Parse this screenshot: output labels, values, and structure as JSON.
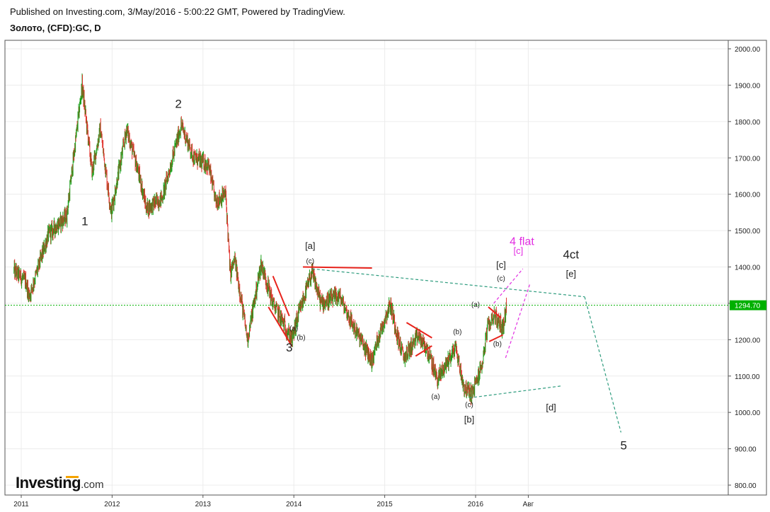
{
  "header": {
    "published": "Published on Investing.com, 3/May/2016 - 5:00:22 GMT, Powered by TradingView.",
    "symbol": "Золото, (CFD):GC, D"
  },
  "logo": {
    "main": "Investing",
    "suffix": ".com",
    "accent_color": "#f5a300"
  },
  "chart_data": {
    "type": "candlestick",
    "title": "Золото, (CFD):GC, D",
    "ylim": [
      800,
      2000
    ],
    "yticks": [
      "2000.00",
      "1900.00",
      "1800.00",
      "1700.00",
      "1600.00",
      "1500.00",
      "1400.00",
      "1300.00",
      "1200.00",
      "1100.00",
      "1000.00",
      "900.00",
      "800.00"
    ],
    "xticks": [
      "2011",
      "2012",
      "2013",
      "2014",
      "2015",
      "2016",
      "Авг"
    ],
    "xticks_year": [
      2011.0,
      2012.0,
      2013.0,
      2014.0,
      2015.0,
      2016.0,
      2016.58
    ],
    "xlim_year": [
      2010.9,
      2018.25
    ],
    "last_price": "1294.70",
    "price_line_color": "#00b000",
    "up_color": "#1aa01a",
    "down_color": "#e0302a",
    "grid": true,
    "approx_path": [
      {
        "t": 2010.92,
        "p": 1390
      },
      {
        "t": 2011.05,
        "p": 1360
      },
      {
        "t": 2011.09,
        "p": 1320
      },
      {
        "t": 2011.3,
        "p": 1490
      },
      {
        "t": 2011.5,
        "p": 1540
      },
      {
        "t": 2011.67,
        "p": 1900
      },
      {
        "t": 2011.78,
        "p": 1660
      },
      {
        "t": 2011.87,
        "p": 1780
      },
      {
        "t": 2011.99,
        "p": 1550
      },
      {
        "t": 2012.16,
        "p": 1780
      },
      {
        "t": 2012.3,
        "p": 1650
      },
      {
        "t": 2012.38,
        "p": 1560
      },
      {
        "t": 2012.55,
        "p": 1590
      },
      {
        "t": 2012.76,
        "p": 1790
      },
      {
        "t": 2012.9,
        "p": 1700
      },
      {
        "t": 2013.06,
        "p": 1680
      },
      {
        "t": 2013.14,
        "p": 1580
      },
      {
        "t": 2013.25,
        "p": 1600
      },
      {
        "t": 2013.3,
        "p": 1380
      },
      {
        "t": 2013.35,
        "p": 1420
      },
      {
        "t": 2013.49,
        "p": 1200
      },
      {
        "t": 2013.64,
        "p": 1410
      },
      {
        "t": 2013.77,
        "p": 1300
      },
      {
        "t": 2013.98,
        "p": 1200
      },
      {
        "t": 2014.04,
        "p": 1260
      },
      {
        "t": 2014.2,
        "p": 1385
      },
      {
        "t": 2014.3,
        "p": 1300
      },
      {
        "t": 2014.5,
        "p": 1320
      },
      {
        "t": 2014.65,
        "p": 1240
      },
      {
        "t": 2014.86,
        "p": 1140
      },
      {
        "t": 2014.92,
        "p": 1200
      },
      {
        "t": 2015.06,
        "p": 1300
      },
      {
        "t": 2015.15,
        "p": 1200
      },
      {
        "t": 2015.21,
        "p": 1150
      },
      {
        "t": 2015.37,
        "p": 1210
      },
      {
        "t": 2015.47,
        "p": 1170
      },
      {
        "t": 2015.58,
        "p": 1090
      },
      {
        "t": 2015.78,
        "p": 1180
      },
      {
        "t": 2015.87,
        "p": 1070
      },
      {
        "t": 2015.96,
        "p": 1050
      },
      {
        "t": 2016.07,
        "p": 1130
      },
      {
        "t": 2016.13,
        "p": 1230
      },
      {
        "t": 2016.2,
        "p": 1270
      },
      {
        "t": 2016.3,
        "p": 1230
      },
      {
        "t": 2016.34,
        "p": 1295
      }
    ],
    "annotations": [
      {
        "text": "1",
        "t": 2011.7,
        "p": 1515,
        "color": "#222222",
        "size": 17
      },
      {
        "text": "2",
        "t": 2012.73,
        "p": 1838,
        "color": "#222222",
        "size": 17
      },
      {
        "text": "3",
        "t": 2013.95,
        "p": 1168,
        "color": "#222222",
        "size": 17
      },
      {
        "text": "[a]",
        "t": 2014.18,
        "p": 1450,
        "color": "#222222",
        "size": 13
      },
      {
        "text": "(c)",
        "t": 2014.18,
        "p": 1410,
        "color": "#222222",
        "size": 10
      },
      {
        "text": "(a)",
        "t": 2014.0,
        "p": 1225,
        "color": "#222222",
        "size": 10
      },
      {
        "text": "(b)",
        "t": 2014.08,
        "p": 1200,
        "color": "#222222",
        "size": 10
      },
      {
        "text": "(b)",
        "t": 2015.8,
        "p": 1215,
        "color": "#222222",
        "size": 10
      },
      {
        "text": "(a)",
        "t": 2015.56,
        "p": 1037,
        "color": "#222222",
        "size": 10
      },
      {
        "text": "(c)",
        "t": 2015.93,
        "p": 1015,
        "color": "#222222",
        "size": 10
      },
      {
        "text": "[b]",
        "t": 2015.93,
        "p": 972,
        "color": "#222222",
        "size": 13
      },
      {
        "text": "(a)",
        "t": 2016.0,
        "p": 1290,
        "color": "#222222",
        "size": 10
      },
      {
        "text": "(b)",
        "t": 2016.24,
        "p": 1182,
        "color": "#222222",
        "size": 10
      },
      {
        "text": "(c)",
        "t": 2016.28,
        "p": 1362,
        "color": "#222222",
        "size": 10
      },
      {
        "text": "[c]",
        "t": 2016.28,
        "p": 1397,
        "color": "#222222",
        "size": 13
      },
      {
        "text": "4 flat",
        "t": 2016.51,
        "p": 1460,
        "color": "#e22ee2",
        "size": 16
      },
      {
        "text": "[c]",
        "t": 2016.47,
        "p": 1436,
        "color": "#e22ee2",
        "size": 13
      },
      {
        "text": "4ct",
        "t": 2017.05,
        "p": 1423,
        "color": "#222222",
        "size": 17
      },
      {
        "text": "[e]",
        "t": 2017.05,
        "p": 1373,
        "color": "#222222",
        "size": 13
      },
      {
        "text": "[d]",
        "t": 2016.83,
        "p": 1005,
        "color": "#222222",
        "size": 13
      },
      {
        "text": "5",
        "t": 2017.63,
        "p": 898,
        "color": "#222222",
        "size": 17
      }
    ],
    "lines": [
      {
        "t1": 2014.1,
        "p1": 1400,
        "t2": 2014.86,
        "p2": 1397,
        "color": "#e8231c",
        "width": 2,
        "dash": ""
      },
      {
        "t1": 2013.72,
        "p1": 1290,
        "t2": 2013.98,
        "p2": 1182,
        "color": "#e8231c",
        "width": 2,
        "dash": ""
      },
      {
        "t1": 2013.77,
        "p1": 1375,
        "t2": 2013.95,
        "p2": 1265,
        "color": "#e8231c",
        "width": 2,
        "dash": ""
      },
      {
        "t1": 2015.24,
        "p1": 1247,
        "t2": 2015.52,
        "p2": 1205,
        "color": "#e8231c",
        "width": 2,
        "dash": ""
      },
      {
        "t1": 2015.34,
        "p1": 1155,
        "t2": 2015.52,
        "p2": 1183,
        "color": "#e8231c",
        "width": 2,
        "dash": ""
      },
      {
        "t1": 2016.14,
        "p1": 1290,
        "t2": 2016.28,
        "p2": 1260,
        "color": "#e8231c",
        "width": 2,
        "dash": ""
      },
      {
        "t1": 2016.15,
        "p1": 1195,
        "t2": 2016.3,
        "p2": 1213,
        "color": "#e8231c",
        "width": 2,
        "dash": ""
      },
      {
        "t1": 2014.2,
        "p1": 1395,
        "t2": 2017.2,
        "p2": 1318,
        "color": "#2e9c7e",
        "width": 1.2,
        "dash": "4,3"
      },
      {
        "t1": 2015.93,
        "p1": 1040,
        "t2": 2016.95,
        "p2": 1073,
        "color": "#2e9c7e",
        "width": 1.2,
        "dash": "4,3"
      },
      {
        "t1": 2017.2,
        "p1": 1318,
        "t2": 2017.6,
        "p2": 945,
        "color": "#2e9c7e",
        "width": 1.2,
        "dash": "4,3"
      },
      {
        "t1": 2016.2,
        "p1": 1300,
        "t2": 2016.52,
        "p2": 1395,
        "color": "#e22ee2",
        "width": 1.2,
        "dash": "4,3"
      },
      {
        "t1": 2016.33,
        "p1": 1150,
        "t2": 2016.6,
        "p2": 1355,
        "color": "#e22ee2",
        "width": 1.2,
        "dash": "4,3"
      }
    ]
  }
}
